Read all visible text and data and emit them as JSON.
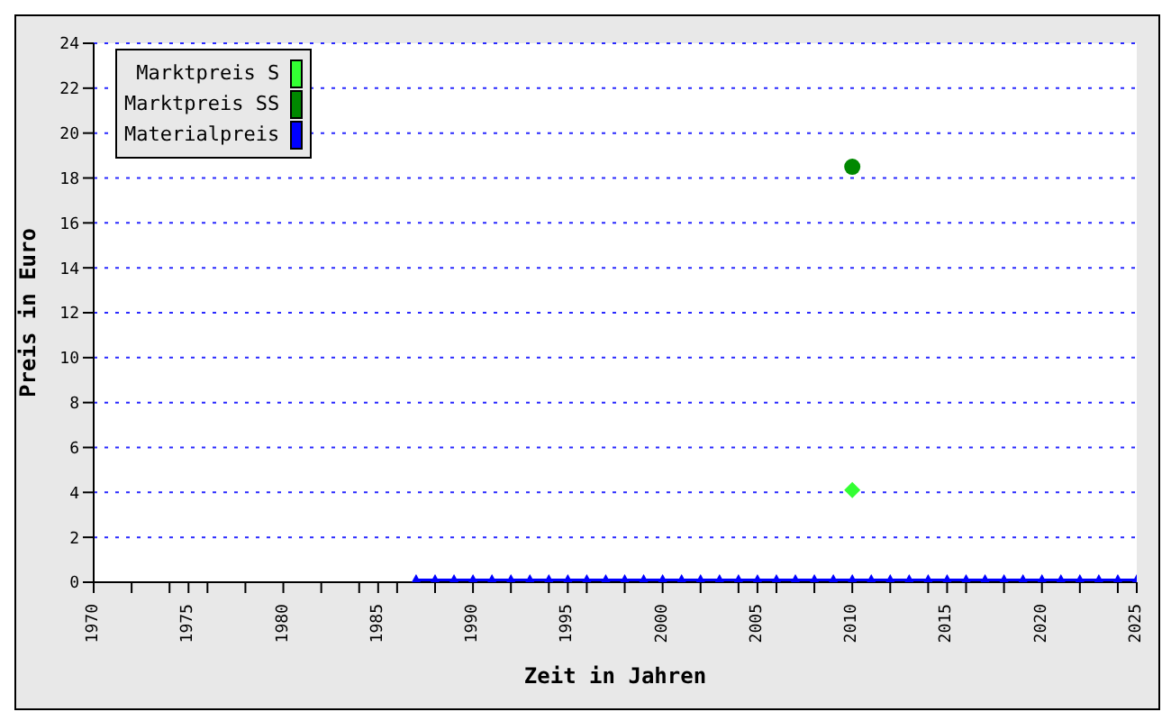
{
  "chart_data": {
    "type": "scatter",
    "xlabel": "Zeit in Jahren",
    "ylabel": "Preis in Euro",
    "xlim": [
      1970,
      2025
    ],
    "xticks": [
      1970,
      {
        "value": 1972,
        "label": null
      },
      {
        "value": 1974,
        "label": null
      },
      1975,
      {
        "value": 1976,
        "label": null
      },
      {
        "value": 1978,
        "label": null
      },
      1980,
      {
        "value": 1982,
        "label": null
      },
      {
        "value": 1984,
        "label": null
      },
      1985,
      {
        "value": 1986,
        "label": null
      },
      {
        "value": 1988,
        "label": null
      },
      1990,
      {
        "value": 1992,
        "label": null
      },
      {
        "value": 1994,
        "label": null
      },
      1995,
      {
        "value": 1996,
        "label": null
      },
      {
        "value": 1998,
        "label": null
      },
      2000,
      {
        "value": 2002,
        "label": null
      },
      {
        "value": 2004,
        "label": null
      },
      2005,
      {
        "value": 2006,
        "label": null
      },
      {
        "value": 2008,
        "label": null
      },
      2010,
      {
        "value": 2012,
        "label": null
      },
      {
        "value": 2014,
        "label": null
      },
      2015,
      {
        "value": 2016,
        "label": null
      },
      {
        "value": 2018,
        "label": null
      },
      2020,
      {
        "value": 2022,
        "label": null
      },
      {
        "value": 2024,
        "label": null
      },
      2025
    ],
    "ylim": [
      0,
      24
    ],
    "yticks": [
      0,
      2,
      4,
      6,
      8,
      10,
      12,
      14,
      16,
      18,
      20,
      22,
      24
    ],
    "grid": "y",
    "legend": "top left",
    "series": [
      {
        "name": "Marktpreis S",
        "marker": "diamond",
        "color": "#33ff33",
        "x": [
          2010
        ],
        "values": [
          4.1
        ]
      },
      {
        "name": "Marktpreis SS",
        "marker": "circle",
        "color": "#008800",
        "x": [
          2010
        ],
        "values": [
          18.5
        ]
      },
      {
        "name": "Materialpreis",
        "type": "line",
        "marker": "triangle",
        "color": "#0000ff",
        "x": [
          1987,
          1988,
          1989,
          1990,
          1991,
          1992,
          1993,
          1994,
          1995,
          1996,
          1997,
          1998,
          1999,
          2000,
          2001,
          2002,
          2003,
          2004,
          2005,
          2006,
          2007,
          2008,
          2009,
          2010,
          2011,
          2012,
          2013,
          2014,
          2015,
          2016,
          2017,
          2018,
          2019,
          2020,
          2021,
          2022,
          2023,
          2024,
          2025
        ],
        "values": [
          0,
          0,
          0,
          0,
          0,
          0,
          0,
          0,
          0,
          0,
          0,
          0,
          0,
          0,
          0,
          0,
          0,
          0,
          0,
          0,
          0,
          0,
          0,
          0,
          0,
          0,
          0,
          0,
          0,
          0,
          0,
          0,
          0,
          0,
          0,
          0,
          0,
          0,
          0
        ]
      }
    ]
  }
}
